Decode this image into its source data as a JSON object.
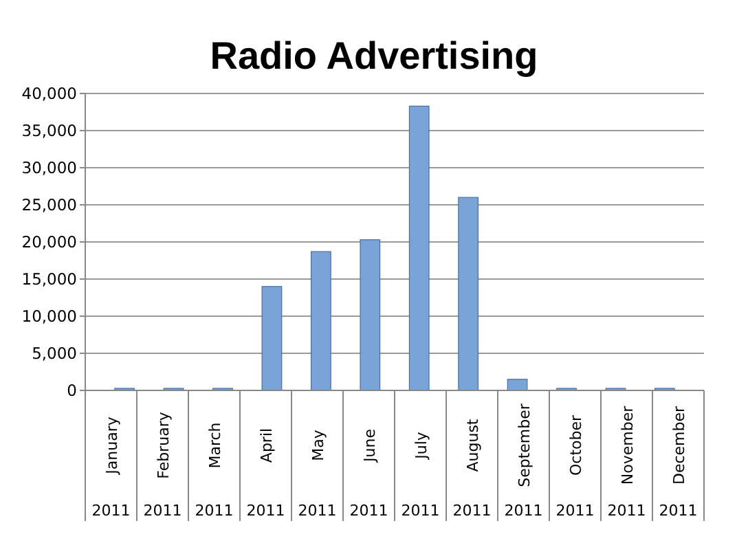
{
  "chart_data": {
    "type": "bar",
    "title": "Radio Advertising",
    "categories": [
      "January\n2011",
      "February\n2011",
      "March\n2011",
      "April\n2011",
      "May\n2011",
      "June\n2011",
      "July\n2011",
      "August\n2011",
      "September\n2011",
      "October\n2011",
      "November\n2011",
      "December\n2011"
    ],
    "values": [
      0,
      0,
      0,
      14000,
      18700,
      20300,
      38300,
      26000,
      1500,
      0,
      0,
      0
    ],
    "color": "#7aa3d8",
    "ylim": [
      0,
      40000
    ],
    "yticks": [
      {
        "value": 0,
        "label": "0"
      },
      {
        "value": 5000,
        "label": "5,000"
      },
      {
        "value": 10000,
        "label": "10,000"
      },
      {
        "value": 15000,
        "label": "15,000"
      },
      {
        "value": 20000,
        "label": "20,000"
      },
      {
        "value": 25000,
        "label": "25,000"
      },
      {
        "value": 30000,
        "label": "30,000"
      },
      {
        "value": 35000,
        "label": "35,000"
      },
      {
        "value": 40000,
        "label": "40,000"
      }
    ],
    "grid": "y"
  }
}
